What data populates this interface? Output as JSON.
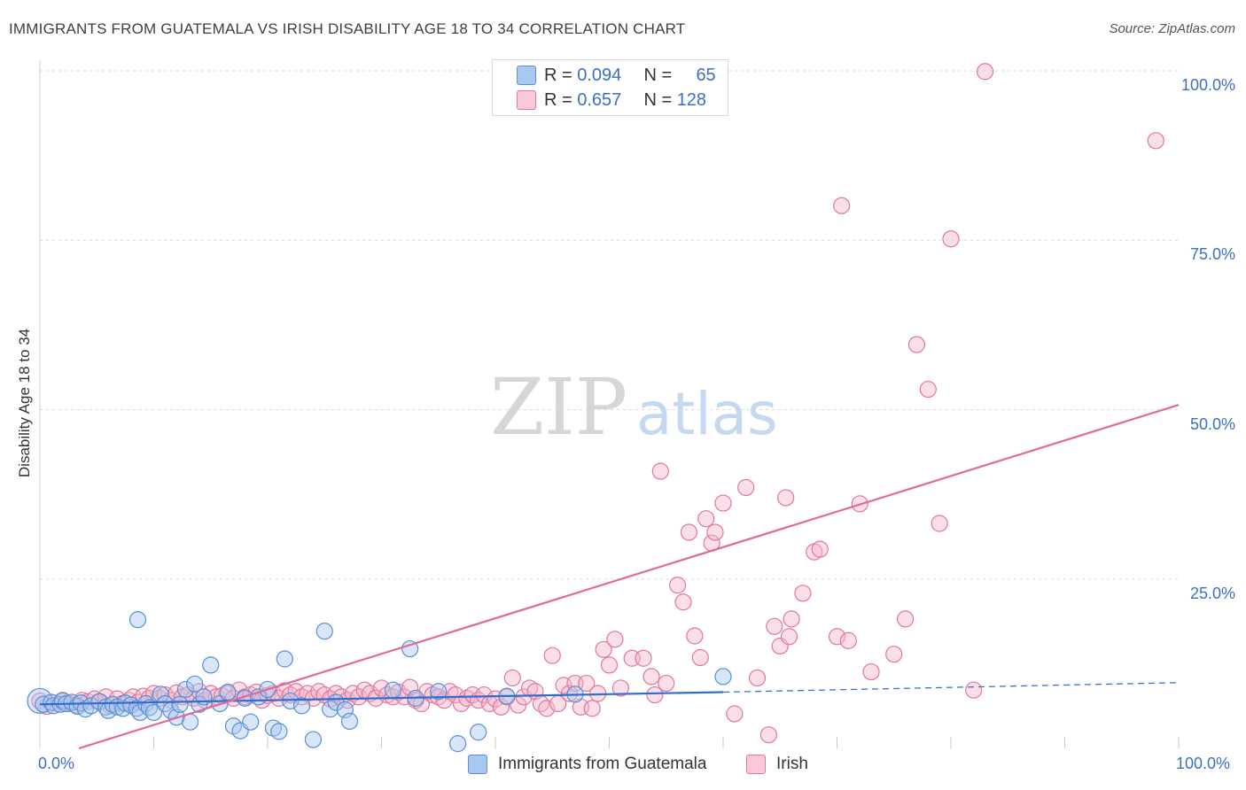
{
  "title": "IMMIGRANTS FROM GUATEMALA VS IRISH DISABILITY AGE 18 TO 34 CORRELATION CHART",
  "source": "Source: ZipAtlas.com",
  "watermark": {
    "zip": "ZIP",
    "atlas": "atlas"
  },
  "colors": {
    "blue_fill": "#a9c8ef",
    "blue_stroke": "#5b8fd6",
    "blue_line": "#2f6fcf",
    "pink_fill": "#f4b8cb",
    "pink_stroke": "#e2779b",
    "pink_line": "#e26a96",
    "tick_text": "#3d6fc4",
    "grid": "#d9d9d9"
  },
  "legend_top": [
    {
      "r_label": "R = ",
      "r": "0.094",
      "n_label": "N = ",
      "n": "65",
      "swatch": "blue"
    },
    {
      "r_label": "R = ",
      "r": "0.657",
      "n_label": "N = ",
      "n": "128",
      "swatch": "pink"
    }
  ],
  "chart_data": {
    "type": "scatter",
    "title": "IMMIGRANTS FROM GUATEMALA VS IRISH DISABILITY AGE 18 TO 34 CORRELATION CHART",
    "xlabel": "",
    "ylabel": "Disability Age 18 to 34",
    "xlim": [
      0,
      100
    ],
    "ylim": [
      0,
      100
    ],
    "x_tick_labels": [
      "0.0%",
      "100.0%"
    ],
    "y_ticks": [
      25,
      50,
      75,
      100
    ],
    "y_tick_labels": [
      "25.0%",
      "50.0%",
      "75.0%",
      "100.0%"
    ],
    "grid": true,
    "legend_position": "bottom",
    "series": [
      {
        "name": "Immigrants from Guatemala",
        "color": "blue",
        "R": 0.094,
        "N": 65,
        "trend": {
          "solid": [
            [
              0,
              6.5
            ],
            [
              60,
              8.3
            ]
          ],
          "dashed": [
            [
              60,
              8.3
            ],
            [
              100,
              9.7
            ]
          ]
        },
        "points": [
          [
            0,
            7
          ],
          [
            0.3,
            6.5
          ],
          [
            1,
            6.8
          ],
          [
            1.2,
            6.3
          ],
          [
            1.8,
            6.5
          ],
          [
            2,
            7
          ],
          [
            2.3,
            6.6
          ],
          [
            2.8,
            6.8
          ],
          [
            3.3,
            6.2
          ],
          [
            3.6,
            6.7
          ],
          [
            4,
            5.8
          ],
          [
            4.5,
            6.3
          ],
          [
            5.2,
            6.9
          ],
          [
            5.8,
            6.1
          ],
          [
            6,
            5.6
          ],
          [
            6.4,
            6.5
          ],
          [
            6.8,
            6.1
          ],
          [
            7.3,
            5.9
          ],
          [
            7.5,
            6.7
          ],
          [
            8,
            6.4
          ],
          [
            8.5,
            5.9
          ],
          [
            8.8,
            5.3
          ],
          [
            9.3,
            6.6
          ],
          [
            9.6,
            6
          ],
          [
            10,
            5.3
          ],
          [
            10.6,
            8
          ],
          [
            11,
            6.6
          ],
          [
            11.5,
            5.6
          ],
          [
            12,
            4.6
          ],
          [
            12.3,
            6.5
          ],
          [
            12.8,
            8.7
          ],
          [
            13.2,
            3.9
          ],
          [
            13.6,
            9.5
          ],
          [
            14,
            6.5
          ],
          [
            14.4,
            7.6
          ],
          [
            8.6,
            19
          ],
          [
            15,
            12.3
          ],
          [
            15.8,
            6.6
          ],
          [
            16.5,
            8.3
          ],
          [
            17,
            3.3
          ],
          [
            17.6,
            2.6
          ],
          [
            18,
            7.4
          ],
          [
            18.5,
            3.9
          ],
          [
            19.2,
            7.6
          ],
          [
            20,
            8.7
          ],
          [
            20.5,
            3
          ],
          [
            21,
            2.5
          ],
          [
            21.5,
            13.2
          ],
          [
            22,
            7
          ],
          [
            23,
            6.3
          ],
          [
            24,
            1.3
          ],
          [
            25,
            17.3
          ],
          [
            25.5,
            5.8
          ],
          [
            26,
            6.8
          ],
          [
            26.8,
            5.7
          ],
          [
            27.2,
            4
          ],
          [
            31,
            8.6
          ],
          [
            32.5,
            14.7
          ],
          [
            33,
            7.4
          ],
          [
            35,
            8.4
          ],
          [
            36.7,
            0.7
          ],
          [
            38.5,
            2.4
          ],
          [
            41,
            7.7
          ],
          [
            47,
            8
          ],
          [
            60,
            10.6
          ]
        ]
      },
      {
        "name": "Irish",
        "color": "pink",
        "R": 0.657,
        "N": 128,
        "trend": {
          "solid": [
            [
              0,
              -1.8
            ],
            [
              100,
              50.7
            ]
          ]
        },
        "points": [
          [
            0,
            7
          ],
          [
            0.6,
            6.2
          ],
          [
            1.2,
            6.7
          ],
          [
            2,
            7.1
          ],
          [
            2.6,
            6.6
          ],
          [
            3.2,
            6.4
          ],
          [
            3.7,
            7.1
          ],
          [
            4.2,
            6.9
          ],
          [
            4.8,
            7.3
          ],
          [
            5.3,
            6.9
          ],
          [
            5.8,
            7.6
          ],
          [
            6.2,
            6.3
          ],
          [
            6.8,
            7.3
          ],
          [
            7.2,
            6.6
          ],
          [
            7.8,
            7.1
          ],
          [
            8.2,
            7.6
          ],
          [
            8.6,
            6.8
          ],
          [
            9.1,
            7.7
          ],
          [
            9.6,
            7.4
          ],
          [
            10,
            8.1
          ],
          [
            10.5,
            7.4
          ],
          [
            11,
            7.9
          ],
          [
            11.5,
            7.1
          ],
          [
            12,
            8.2
          ],
          [
            12.5,
            7.6
          ],
          [
            13,
            7.9
          ],
          [
            13.5,
            7.4
          ],
          [
            14,
            8.4
          ],
          [
            14.5,
            7.1
          ],
          [
            15,
            8.1
          ],
          [
            15.5,
            7.6
          ],
          [
            16,
            7.8
          ],
          [
            16.5,
            8.1
          ],
          [
            17,
            7.4
          ],
          [
            17.5,
            8.6
          ],
          [
            18,
            7.6
          ],
          [
            18.5,
            7.9
          ],
          [
            19,
            8.3
          ],
          [
            19.5,
            7.1
          ],
          [
            20,
            7.8
          ],
          [
            20.5,
            8.1
          ],
          [
            21,
            7.4
          ],
          [
            21.5,
            8.5
          ],
          [
            22,
            7.9
          ],
          [
            22.5,
            8.4
          ],
          [
            23,
            7.6
          ],
          [
            23.5,
            8.1
          ],
          [
            24,
            7.4
          ],
          [
            24.5,
            8.4
          ],
          [
            25,
            7.9
          ],
          [
            25.5,
            7.3
          ],
          [
            26,
            8.1
          ],
          [
            26.5,
            7.6
          ],
          [
            27,
            7.1
          ],
          [
            27.5,
            8.1
          ],
          [
            28,
            7.6
          ],
          [
            28.5,
            8.6
          ],
          [
            29,
            8.1
          ],
          [
            29.5,
            7.4
          ],
          [
            30,
            8.9
          ],
          [
            30.5,
            7.9
          ],
          [
            31,
            7.6
          ],
          [
            31.5,
            8.3
          ],
          [
            32,
            7.6
          ],
          [
            32.5,
            9
          ],
          [
            33,
            7.1
          ],
          [
            33.5,
            6.6
          ],
          [
            34,
            8.4
          ],
          [
            34.5,
            7.9
          ],
          [
            35,
            7.6
          ],
          [
            35.5,
            7.1
          ],
          [
            36,
            8.4
          ],
          [
            36.5,
            7.9
          ],
          [
            37,
            6.6
          ],
          [
            37.5,
            7.4
          ],
          [
            38,
            7.9
          ],
          [
            38.5,
            7.1
          ],
          [
            39,
            7.9
          ],
          [
            39.5,
            6.6
          ],
          [
            40,
            7.3
          ],
          [
            40.5,
            6.1
          ],
          [
            41,
            7.6
          ],
          [
            41.5,
            10.4
          ],
          [
            42,
            6.4
          ],
          [
            42.5,
            7.6
          ],
          [
            43,
            8.9
          ],
          [
            43.5,
            8.4
          ],
          [
            44,
            6.6
          ],
          [
            44.5,
            5.9
          ],
          [
            45,
            13.7
          ],
          [
            45.5,
            6.6
          ],
          [
            46,
            9.3
          ],
          [
            46.5,
            8.1
          ],
          [
            47,
            9.6
          ],
          [
            47.5,
            6.1
          ],
          [
            48,
            9.6
          ],
          [
            48.5,
            5.9
          ],
          [
            49,
            8.1
          ],
          [
            49.5,
            14.6
          ],
          [
            50,
            12.3
          ],
          [
            50.5,
            16.1
          ],
          [
            51,
            8.9
          ],
          [
            52,
            13.3
          ],
          [
            53,
            13.3
          ],
          [
            53.7,
            10.6
          ],
          [
            54,
            7.9
          ],
          [
            54.5,
            40.9
          ],
          [
            55,
            9.6
          ],
          [
            56,
            24.1
          ],
          [
            56.5,
            21.6
          ],
          [
            57,
            31.9
          ],
          [
            57.5,
            16.6
          ],
          [
            58,
            13.4
          ],
          [
            58.5,
            33.9
          ],
          [
            59,
            30.3
          ],
          [
            59.3,
            31.9
          ],
          [
            60,
            36.2
          ],
          [
            61,
            5.1
          ],
          [
            62,
            38.5
          ],
          [
            63,
            10.4
          ],
          [
            64,
            2
          ],
          [
            64.5,
            18
          ],
          [
            65,
            15.1
          ],
          [
            65.5,
            37
          ],
          [
            65.8,
            16.5
          ],
          [
            66,
            19.1
          ],
          [
            67,
            22.9
          ],
          [
            68,
            29
          ],
          [
            68.5,
            29.4
          ],
          [
            70,
            16.5
          ],
          [
            70.4,
            80.1
          ],
          [
            71,
            15.9
          ],
          [
            72,
            36.1
          ],
          [
            73,
            11.3
          ],
          [
            75,
            13.9
          ],
          [
            76,
            19.1
          ],
          [
            77,
            59.6
          ],
          [
            78,
            53
          ],
          [
            79,
            33.2
          ],
          [
            80,
            75.2
          ],
          [
            82,
            8.6
          ],
          [
            83,
            99.9
          ],
          [
            98,
            89.7
          ]
        ]
      }
    ]
  }
}
